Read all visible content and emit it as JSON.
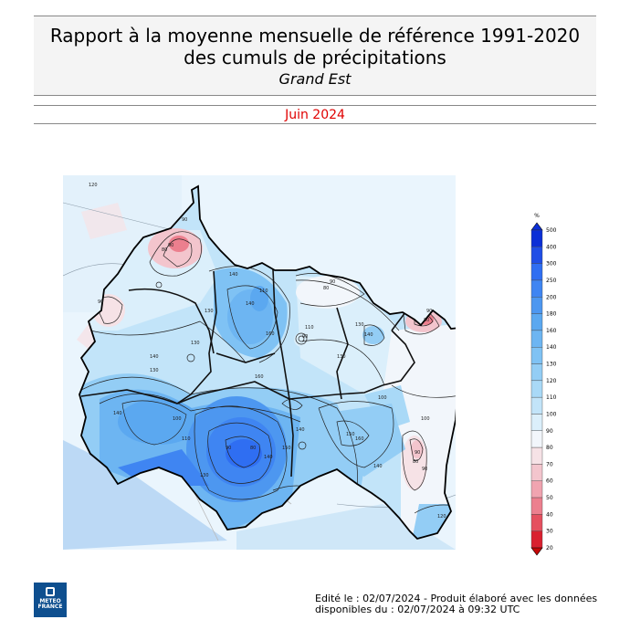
{
  "header": {
    "title": "Rapport à la moyenne mensuelle de référence 1991-2020 des cumuls de précipitations",
    "region": "Grand Est",
    "period": "Juin 2024"
  },
  "colors": {
    "period_text": "#e00000",
    "border": "#000000"
  },
  "legend": {
    "unit": "%",
    "ticks": [
      "500",
      "400",
      "300",
      "250",
      "200",
      "180",
      "160",
      "140",
      "130",
      "120",
      "110",
      "100",
      "90",
      "80",
      "70",
      "60",
      "50",
      "40",
      "30",
      "20"
    ],
    "colors": [
      "#0b2fd6",
      "#1f4ee6",
      "#2f6ef2",
      "#3f85f2",
      "#4d97f0",
      "#5ba8f0",
      "#6db5f2",
      "#7fc2f4",
      "#93cdf5",
      "#a9d9f7",
      "#c2e4f9",
      "#dbeffb",
      "#f2f6fb",
      "#f6e2e6",
      "#f3c5cd",
      "#f0a4b0",
      "#ec7f8e",
      "#e5505f",
      "#d9202f",
      "#c40808"
    ]
  },
  "map": {
    "contour_labels": [
      "120",
      "90",
      "90",
      "80",
      "90",
      "130",
      "140",
      "140",
      "110",
      "160",
      "130",
      "140",
      "90",
      "80",
      "110",
      "90",
      "130",
      "140",
      "130",
      "160",
      "130",
      "140",
      "100",
      "110",
      "90",
      "80",
      "140",
      "130",
      "150",
      "140",
      "150",
      "160",
      "140",
      "100",
      "90",
      "80",
      "100",
      "90",
      "80",
      "90",
      "120",
      "110"
    ]
  },
  "footer": {
    "line1": "Edité le : 02/07/2024 - Produit élaboré avec les données",
    "line2": "disponibles du : 02/07/2024 à 09:32 UTC"
  },
  "logo": {
    "line1": "METEO",
    "line2": "FRANCE"
  }
}
